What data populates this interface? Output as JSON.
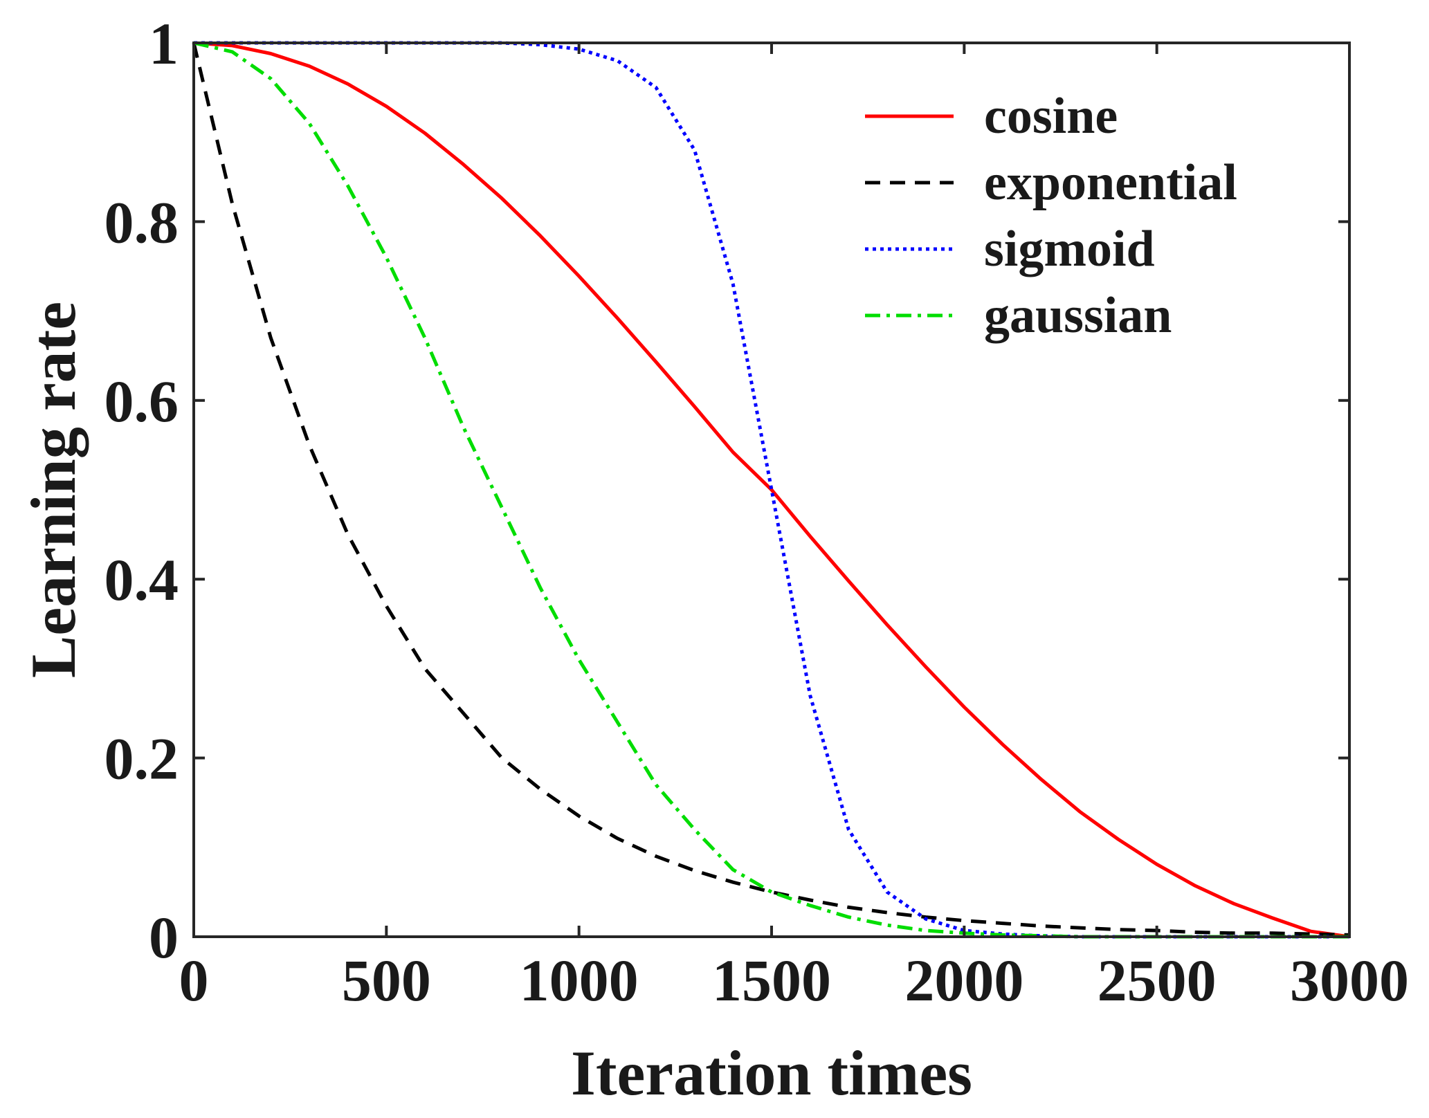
{
  "chart_data": {
    "type": "line",
    "title": "",
    "xlabel": "Iteration times",
    "ylabel": "Learning rate",
    "xlim": [
      0,
      3000
    ],
    "ylim": [
      0,
      1
    ],
    "xticks": [
      0,
      500,
      1000,
      1500,
      2000,
      2500,
      3000
    ],
    "xtick_labels": [
      "0",
      "500",
      "1000",
      "1500",
      "2000",
      "2500",
      "3000"
    ],
    "yticks": [
      0,
      0.2,
      0.4,
      0.6,
      0.8,
      1
    ],
    "ytick_labels": [
      "0",
      "0.2",
      "0.4",
      "0.6",
      "0.8",
      "1"
    ],
    "grid": false,
    "legend_position": "top-right",
    "x": [
      0,
      100,
      200,
      300,
      400,
      500,
      600,
      700,
      800,
      900,
      1000,
      1100,
      1200,
      1300,
      1400,
      1500,
      1600,
      1700,
      1800,
      1900,
      2000,
      2100,
      2200,
      2300,
      2400,
      2500,
      2600,
      2700,
      2800,
      2900,
      3000
    ],
    "series": [
      {
        "name": "cosine",
        "color": "#ff0000",
        "style": "solid",
        "values": [
          1.0,
          0.997,
          0.988,
          0.974,
          0.954,
          0.929,
          0.899,
          0.864,
          0.826,
          0.784,
          0.739,
          0.692,
          0.643,
          0.593,
          0.542,
          0.5,
          0.448,
          0.398,
          0.349,
          0.302,
          0.257,
          0.215,
          0.176,
          0.14,
          0.109,
          0.081,
          0.057,
          0.037,
          0.021,
          0.006,
          0.0
        ]
      },
      {
        "name": "exponential",
        "color": "#000000",
        "style": "dashed",
        "values": [
          1.0,
          0.82,
          0.67,
          0.55,
          0.45,
          0.37,
          0.3,
          0.25,
          0.2,
          0.165,
          0.135,
          0.11,
          0.09,
          0.074,
          0.061,
          0.05,
          0.041,
          0.033,
          0.027,
          0.022,
          0.018,
          0.015,
          0.012,
          0.01,
          0.008,
          0.007,
          0.005,
          0.004,
          0.004,
          0.003,
          0.002
        ]
      },
      {
        "name": "sigmoid",
        "color": "#0000ff",
        "style": "dotted",
        "values": [
          1.0,
          1.0,
          1.0,
          1.0,
          1.0,
          1.0,
          1.0,
          1.0,
          1.0,
          0.998,
          0.993,
          0.98,
          0.95,
          0.88,
          0.73,
          0.5,
          0.27,
          0.12,
          0.05,
          0.02,
          0.007,
          0.003,
          0.001,
          0.0,
          0.0,
          0.0,
          0.0,
          0.0,
          0.0,
          0.0,
          0.0
        ]
      },
      {
        "name": "gaussian",
        "color": "#00dd00",
        "style": "dashdot",
        "values": [
          1.0,
          0.99,
          0.96,
          0.91,
          0.84,
          0.76,
          0.67,
          0.57,
          0.48,
          0.39,
          0.31,
          0.24,
          0.17,
          0.12,
          0.075,
          0.05,
          0.035,
          0.022,
          0.013,
          0.007,
          0.004,
          0.002,
          0.001,
          0.0,
          0.0,
          0.0,
          0.0,
          0.0,
          0.0,
          0.0,
          0.0
        ]
      }
    ]
  }
}
